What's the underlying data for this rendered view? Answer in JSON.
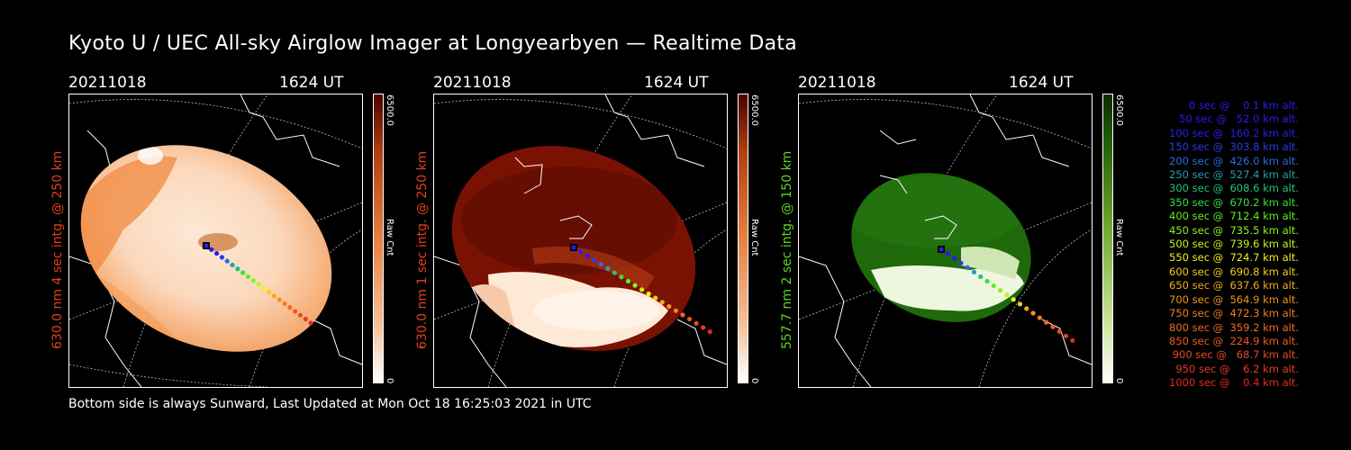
{
  "title": "Kyoto U / UEC All-sky Airglow Imager at Longyearbyen — Realtime Data",
  "panels": [
    {
      "date": "20211018",
      "time": "1624 UT",
      "ylabel": "630.0 nm  4 sec intg. @ 250 km",
      "label_color": "#e0401c",
      "cbar_max": "6500.0",
      "cbar_min": "0",
      "cbar_label": "Raw Cnt",
      "scheme": "orange"
    },
    {
      "date": "20211018",
      "time": "1624 UT",
      "ylabel": "630.0 nm  1 sec intg. @ 250 km",
      "label_color": "#e0401c",
      "cbar_max": "6500.0",
      "cbar_min": "0",
      "cbar_label": "Raw Cnt",
      "scheme": "red"
    },
    {
      "date": "20211018",
      "time": "1624 UT",
      "ylabel": "557.7 nm  2 sec intg. @ 150 km",
      "label_color": "#5cd61c",
      "cbar_max": "6500.0",
      "cbar_min": "0",
      "cbar_label": "Raw Cnt",
      "scheme": "green"
    }
  ],
  "legend": [
    {
      "text": "0 sec @    0.1 km alt.",
      "color": "#2a1cf0"
    },
    {
      "text": "50 sec @   52.0 km alt.",
      "color": "#2a1cf0"
    },
    {
      "text": "100 sec @  160.2 km alt.",
      "color": "#2a1cf0"
    },
    {
      "text": "150 sec @  303.8 km alt.",
      "color": "#2a3ce8"
    },
    {
      "text": "200 sec @  426.0 km alt.",
      "color": "#2a6ce0"
    },
    {
      "text": "250 sec @  527.4 km alt.",
      "color": "#2a9cb0"
    },
    {
      "text": "300 sec @  608.6 km alt.",
      "color": "#22c47a"
    },
    {
      "text": "350 sec @  670.2 km alt.",
      "color": "#36e03a"
    },
    {
      "text": "400 sec @  712.4 km alt.",
      "color": "#62ee1e"
    },
    {
      "text": "450 sec @  735.5 km alt.",
      "color": "#8ef21a"
    },
    {
      "text": "500 sec @  739.6 km alt.",
      "color": "#c4f41a"
    },
    {
      "text": "550 sec @  724.7 km alt.",
      "color": "#f0f01a"
    },
    {
      "text": "600 sec @  690.8 km alt.",
      "color": "#f2cf1a"
    },
    {
      "text": "650 sec @  637.6 km alt.",
      "color": "#f2ab1a"
    },
    {
      "text": "700 sec @  564.9 km alt.",
      "color": "#f2931a"
    },
    {
      "text": "750 sec @  472.3 km alt.",
      "color": "#f07e1e"
    },
    {
      "text": "800 sec @  359.2 km alt.",
      "color": "#ee6a22"
    },
    {
      "text": "850 sec @  224.9 km alt.",
      "color": "#ec5a22"
    },
    {
      "text": "900 sec @   68.7 km alt.",
      "color": "#ea4a22"
    },
    {
      "text": "950 sec @    6.2 km alt.",
      "color": "#e83a22"
    },
    {
      "text": "1000 sec @    0.4 km alt.",
      "color": "#e62a22"
    }
  ],
  "footer": "Bottom side is always Sunward, Last Updated at Mon Oct 18 16:25:03 2021 in UTC"
}
